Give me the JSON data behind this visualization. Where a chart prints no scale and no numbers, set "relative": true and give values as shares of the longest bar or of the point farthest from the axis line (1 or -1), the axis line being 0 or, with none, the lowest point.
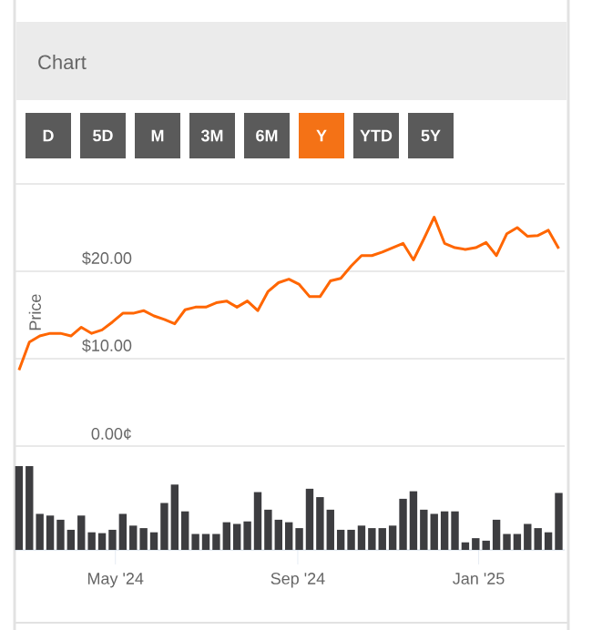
{
  "chart_data": [
    {
      "type": "line",
      "title": "Chart",
      "annotations": [
        "D",
        "5D",
        "M",
        "3M",
        "6M",
        "Y",
        "YTD",
        "5Y"
      ],
      "ylabel": "Price",
      "x": [
        "2024-02-26",
        "2024-03-04",
        "2024-03-11",
        "2024-03-18",
        "2024-03-25",
        "2024-04-01",
        "2024-04-08",
        "2024-04-15",
        "2024-04-22",
        "2024-04-29",
        "2024-05-06",
        "2024-05-13",
        "2024-05-20",
        "2024-05-27",
        "2024-06-03",
        "2024-06-10",
        "2024-06-17",
        "2024-06-24",
        "2024-07-01",
        "2024-07-08",
        "2024-07-15",
        "2024-07-22",
        "2024-07-29",
        "2024-08-05",
        "2024-08-12",
        "2024-08-19",
        "2024-08-26",
        "2024-09-02",
        "2024-09-09",
        "2024-09-16",
        "2024-09-23",
        "2024-09-30",
        "2024-10-07",
        "2024-10-14",
        "2024-10-21",
        "2024-10-28",
        "2024-11-04",
        "2024-11-11",
        "2024-11-18",
        "2024-11-25",
        "2024-12-02",
        "2024-12-09",
        "2024-12-16",
        "2024-12-23",
        "2024-12-30",
        "2025-01-06",
        "2025-01-13",
        "2025-01-20",
        "2025-01-27",
        "2025-02-03",
        "2025-02-10",
        "2025-02-17",
        "2025-02-24"
      ],
      "values": [
        8.7,
        11.9,
        12.6,
        12.9,
        12.9,
        12.6,
        13.6,
        12.9,
        13.3,
        14.2,
        15.2,
        15.2,
        15.5,
        14.9,
        14.5,
        14.0,
        15.6,
        15.9,
        15.9,
        16.4,
        16.6,
        15.9,
        16.6,
        15.5,
        17.7,
        18.7,
        19.1,
        18.5,
        17.1,
        17.1,
        18.9,
        19.2,
        20.6,
        21.8,
        21.8,
        22.2,
        22.7,
        23.2,
        21.3,
        23.7,
        26.2,
        23.2,
        22.7,
        22.5,
        22.7,
        23.3,
        21.8,
        24.3,
        25.0,
        24.0,
        24.1,
        24.7,
        22.6
      ],
      "color": "#ff6600",
      "xlim": [
        "2024-02-23",
        "2025-02-28"
      ],
      "ylim": [
        0,
        30
      ],
      "yticks": [
        {
          "value": 0,
          "label": "0.00¢"
        },
        {
          "value": 10,
          "label": "$10.00"
        },
        {
          "value": 20,
          "label": "$20.00"
        },
        {
          "value": 30,
          "label": null
        }
      ],
      "grid": "y",
      "tick_labels": "y"
    },
    {
      "type": "bar",
      "relative": true,
      "color": "#3d3d40",
      "x": [
        "2024-02-26",
        "2024-03-04",
        "2024-03-11",
        "2024-03-18",
        "2024-03-25",
        "2024-04-01",
        "2024-04-08",
        "2024-04-15",
        "2024-04-22",
        "2024-04-29",
        "2024-05-06",
        "2024-05-13",
        "2024-05-20",
        "2024-05-27",
        "2024-06-03",
        "2024-06-10",
        "2024-06-17",
        "2024-06-24",
        "2024-07-01",
        "2024-07-08",
        "2024-07-15",
        "2024-07-22",
        "2024-07-29",
        "2024-08-05",
        "2024-08-12",
        "2024-08-19",
        "2024-08-26",
        "2024-09-02",
        "2024-09-09",
        "2024-09-16",
        "2024-09-23",
        "2024-09-30",
        "2024-10-07",
        "2024-10-14",
        "2024-10-21",
        "2024-10-28",
        "2024-11-04",
        "2024-11-11",
        "2024-11-18",
        "2024-11-25",
        "2024-12-02",
        "2024-12-09",
        "2024-12-16",
        "2024-12-23",
        "2024-12-30",
        "2025-01-06",
        "2025-01-13",
        "2025-01-20",
        "2025-01-27",
        "2025-02-03",
        "2025-02-10",
        "2025-02-17",
        "2025-02-24"
      ],
      "values": [
        1.0,
        1.0,
        0.43,
        0.41,
        0.36,
        0.24,
        0.41,
        0.21,
        0.2,
        0.24,
        0.43,
        0.29,
        0.26,
        0.21,
        0.56,
        0.78,
        0.46,
        0.19,
        0.19,
        0.19,
        0.33,
        0.31,
        0.34,
        0.69,
        0.48,
        0.36,
        0.33,
        0.26,
        0.73,
        0.63,
        0.48,
        0.24,
        0.24,
        0.29,
        0.26,
        0.26,
        0.29,
        0.61,
        0.7,
        0.48,
        0.43,
        0.46,
        0.46,
        0.09,
        0.14,
        0.11,
        0.36,
        0.19,
        0.19,
        0.31,
        0.26,
        0.21,
        0.68
      ],
      "xlim": [
        "2024-02-23",
        "2025-02-28"
      ],
      "xticks": [
        {
          "value": "2024-05-01",
          "label": "May '24"
        },
        {
          "value": "2024-09-01",
          "label": "Sep '24"
        },
        {
          "value": "2025-01-01",
          "label": "Jan '25"
        }
      ]
    }
  ]
}
